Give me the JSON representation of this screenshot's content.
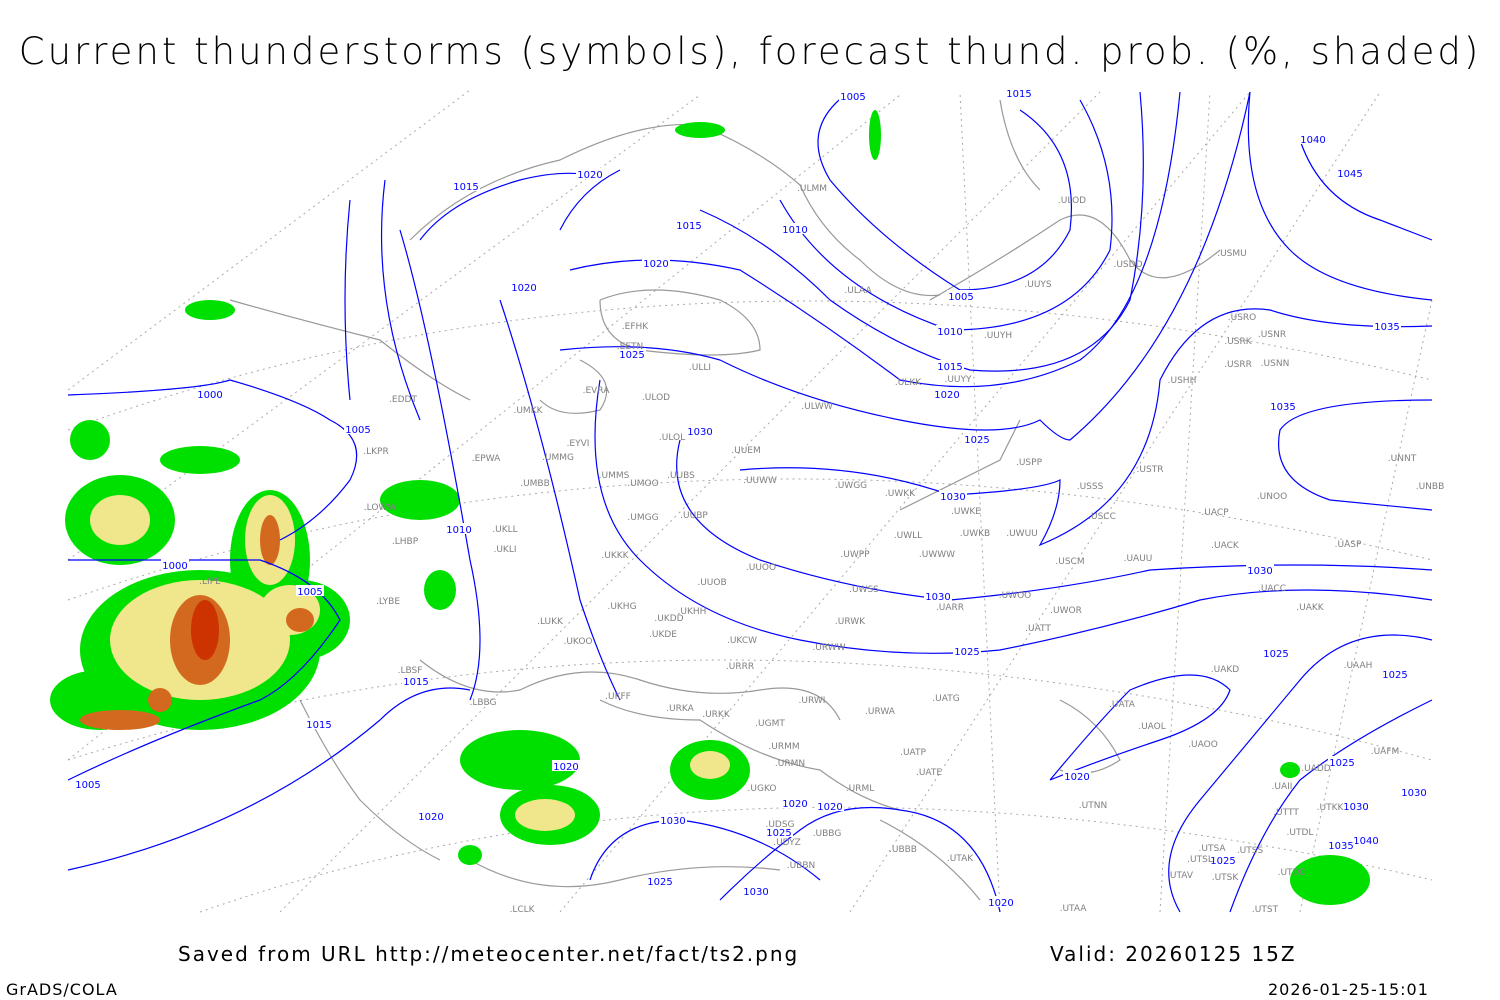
{
  "title": "Current thunderstorms (symbols), forecast thund. prob. (%, shaded)",
  "footer": {
    "source": "Saved from URL http://meteocenter.net/fact/ts2.png",
    "valid": "Valid: 20260125 15Z",
    "software": "GrADS/COLA",
    "timestamp": "2026-01-25-15:01"
  },
  "colors": {
    "isobar": "#0000ff",
    "coastline": "#999999",
    "station_label": "#808080",
    "prob_low": "#00e000",
    "prob_mid": "#f0e68c",
    "prob_high": "#d2691e",
    "prob_max": "#cc3300"
  },
  "isobar_labels": [
    "1005",
    "1015",
    "1040",
    "1045",
    "1015",
    "1020",
    "1015",
    "1010",
    "1020",
    "1020",
    "1005",
    "1010",
    "1035",
    "1025",
    "1015",
    "1020",
    "1000",
    "1035",
    "1005",
    "1030",
    "1025",
    "1030",
    "1010",
    "1000",
    "1005",
    "1030",
    "1030",
    "1025",
    "1025",
    "1025",
    "1015",
    "1015",
    "1020",
    "1025",
    "1020",
    "1005",
    "1030",
    "1020",
    "1020",
    "1030",
    "1020",
    "1030",
    "1025",
    "1040",
    "1035",
    "1025",
    "1025",
    "1030",
    "1020"
  ],
  "stations": [
    "ULMM",
    "ULOD",
    "USDD",
    "USMU",
    "ULAA",
    "UUYS",
    "UUYH",
    "UUYY",
    "ULKK",
    "USRO",
    "USRK",
    "USNR",
    "USRR",
    "USNN",
    "USHH",
    "EFHK",
    "EETN",
    "ULLI",
    "EVRA",
    "ULOD",
    "ULWW",
    "UMKK",
    "EDDT",
    "EYVI",
    "ULOL",
    "UUEM",
    "EPWA",
    "UMMG",
    "LKPR",
    "USPP",
    "USSS",
    "USTR",
    "UNNT",
    "UMMS",
    "UMOO",
    "UUBS",
    "UUWW",
    "UWGG",
    "UWKK",
    "UNOO",
    "UNBB",
    "UMBB",
    "UWKE",
    "USCC",
    "UACP",
    "LOWW",
    "UKLL",
    "UWKB",
    "UWUU",
    "UMGG",
    "UUBP",
    "UKLI",
    "LHBP",
    "UWLL",
    "UACK",
    "UASP",
    "UWWW",
    "UWPP",
    "UKKK",
    "USCM",
    "UAUU",
    "LIPE",
    "UUOB",
    "UUOO",
    "UWSS",
    "UACC",
    "UWOO",
    "UARR",
    "LYBE",
    "UKHH",
    "UKHG",
    "UKDD",
    "UWOR",
    "UAKK",
    "LUKK",
    "URWK",
    "UATT",
    "UKDE",
    "UKOO",
    "UKCW",
    "URWW",
    "LBSF",
    "URRR",
    "UAKD",
    "UAAH",
    "UKFF",
    "LBBG",
    "URWI",
    "UATG",
    "URKA",
    "URKK",
    "URWA",
    "UATA",
    "UAOL",
    "UGMT",
    "URMM",
    "UATP",
    "UAOO",
    "UAFM",
    "URMN",
    "UATE",
    "UADD",
    "UGKO",
    "URML",
    "UAII",
    "UTNN",
    "UTTT",
    "UTKK",
    "UDSG",
    "UBBG",
    "UTDL",
    "UDYZ",
    "UBBB",
    "UTSA",
    "UTSS",
    "UBBN",
    "UTAK",
    "UTSL",
    "UTDD",
    "UTAV",
    "UTSK",
    "UTST",
    "UTAA",
    "LCLK"
  ]
}
